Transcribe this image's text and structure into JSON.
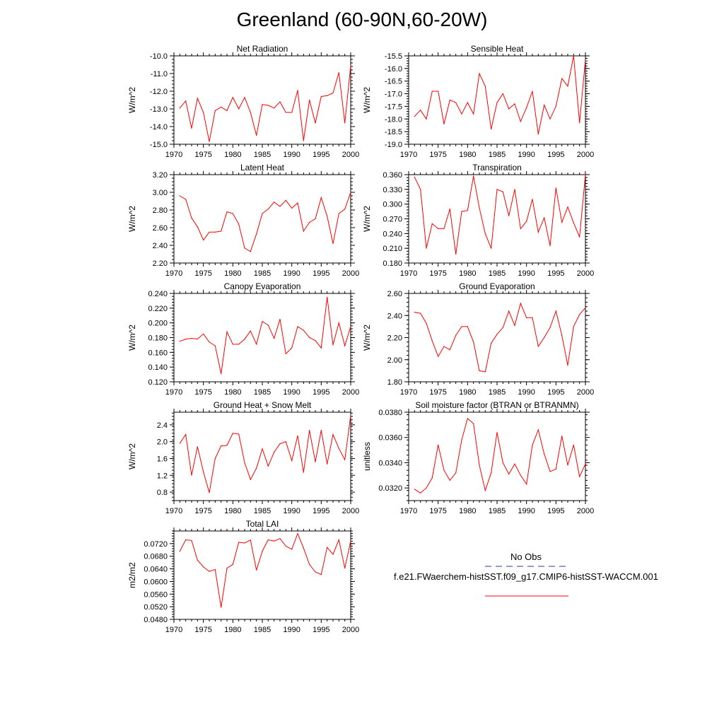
{
  "title": "Greenland (60-90N,60-20W)",
  "colors": {
    "series": "#ff0000",
    "obs": "#2b3b8f",
    "axis": "#000000"
  },
  "legend": {
    "obs_label": "No Obs",
    "model_label": "f.e21.FWaerchem-histSST.f09_g17.CMIP6-histSST-WACCM.001"
  },
  "chart_data": [
    {
      "type": "line",
      "title": "Net Radiation",
      "ylabel": "W/m^2",
      "xlabel": "",
      "xlim": [
        1970,
        2000
      ],
      "ylim": [
        -15.0,
        -10.0
      ],
      "xticks": [
        1970,
        1975,
        1980,
        1985,
        1990,
        1995,
        2000
      ],
      "yticks": [
        -15.0,
        -14.0,
        -13.0,
        -12.0,
        -11.0,
        -10.0
      ],
      "ytick_labels": [
        "-15.0",
        "-14.0",
        "-13.0",
        "-12.0",
        "-11.0",
        "-10.0"
      ],
      "x": [
        1971,
        1972,
        1973,
        1974,
        1975,
        1976,
        1977,
        1978,
        1979,
        1980,
        1981,
        1982,
        1983,
        1984,
        1985,
        1986,
        1987,
        1988,
        1989,
        1990,
        1991,
        1992,
        1993,
        1994,
        1995,
        1996,
        1997,
        1998,
        1999,
        2000
      ],
      "series": [
        {
          "name": "f.e21.FWaerchem-histSST.f09_g17.CMIP6-histSST-WACCM.001",
          "values": [
            -12.95,
            -12.55,
            -14.1,
            -12.4,
            -13.2,
            -14.85,
            -13.1,
            -12.9,
            -13.1,
            -12.35,
            -13.0,
            -12.35,
            -13.2,
            -14.5,
            -12.75,
            -12.8,
            -12.95,
            -12.6,
            -13.2,
            -13.2,
            -11.95,
            -14.8,
            -12.5,
            -13.8,
            -12.3,
            -12.25,
            -12.1,
            -10.95,
            -13.8,
            -10.55
          ]
        }
      ]
    },
    {
      "type": "line",
      "title": "Sensible Heat",
      "ylabel": "W/m^2",
      "xlabel": "",
      "xlim": [
        1970,
        2000
      ],
      "ylim": [
        -19.0,
        -15.5
      ],
      "xticks": [
        1970,
        1975,
        1980,
        1985,
        1990,
        1995,
        2000
      ],
      "yticks": [
        -19.0,
        -18.5,
        -18.0,
        -17.5,
        -17.0,
        -16.5,
        -16.0,
        -15.5
      ],
      "ytick_labels": [
        "-19.0",
        "-18.5",
        "-18.0",
        "-17.5",
        "-17.0",
        "-16.5",
        "-16.0",
        "-15.5"
      ],
      "x": [
        1971,
        1972,
        1973,
        1974,
        1975,
        1976,
        1977,
        1978,
        1979,
        1980,
        1981,
        1982,
        1983,
        1984,
        1985,
        1986,
        1987,
        1988,
        1989,
        1990,
        1991,
        1992,
        1993,
        1994,
        1995,
        1996,
        1997,
        1998,
        1999,
        2000
      ],
      "series": [
        {
          "name": "f.e21.FWaerchem-histSST.f09_g17.CMIP6-histSST-WACCM.001",
          "values": [
            -17.9,
            -17.65,
            -18.0,
            -16.9,
            -16.9,
            -18.2,
            -17.25,
            -17.35,
            -17.8,
            -17.35,
            -17.8,
            -16.2,
            -16.7,
            -18.4,
            -17.35,
            -17.0,
            -17.6,
            -17.4,
            -18.1,
            -17.55,
            -16.9,
            -18.6,
            -17.45,
            -18.0,
            -17.5,
            -16.4,
            -16.7,
            -15.5,
            -18.15,
            -15.65
          ]
        }
      ]
    },
    {
      "type": "line",
      "title": "Latent Heat",
      "ylabel": "W/m^2",
      "xlabel": "",
      "xlim": [
        1970,
        2000
      ],
      "ylim": [
        2.2,
        3.2
      ],
      "xticks": [
        1970,
        1975,
        1980,
        1985,
        1990,
        1995,
        2000
      ],
      "yticks": [
        2.2,
        2.4,
        2.6,
        2.8,
        3.0,
        3.2
      ],
      "ytick_labels": [
        "2.20",
        "2.40",
        "2.60",
        "2.80",
        "3.00",
        "3.20"
      ],
      "x": [
        1971,
        1972,
        1973,
        1974,
        1975,
        1976,
        1977,
        1978,
        1979,
        1980,
        1981,
        1982,
        1983,
        1984,
        1985,
        1986,
        1987,
        1988,
        1989,
        1990,
        1991,
        1992,
        1993,
        1994,
        1995,
        1996,
        1997,
        1998,
        1999,
        2000
      ],
      "series": [
        {
          "name": "f.e21.FWaerchem-histSST.f09_g17.CMIP6-histSST-WACCM.001",
          "values": [
            2.96,
            2.92,
            2.71,
            2.61,
            2.46,
            2.55,
            2.55,
            2.56,
            2.78,
            2.76,
            2.64,
            2.37,
            2.33,
            2.53,
            2.76,
            2.81,
            2.89,
            2.84,
            2.91,
            2.82,
            2.88,
            2.56,
            2.66,
            2.7,
            2.94,
            2.73,
            2.42,
            2.76,
            2.81,
            3.0
          ]
        }
      ]
    },
    {
      "type": "line",
      "title": "Transpiration",
      "ylabel": "W/m^2",
      "xlabel": "",
      "xlim": [
        1970,
        2000
      ],
      "ylim": [
        0.18,
        0.36
      ],
      "xticks": [
        1970,
        1975,
        1980,
        1985,
        1990,
        1995,
        2000
      ],
      "yticks": [
        0.18,
        0.21,
        0.24,
        0.27,
        0.3,
        0.33,
        0.36
      ],
      "ytick_labels": [
        "0.180",
        "0.210",
        "0.240",
        "0.270",
        "0.300",
        "0.330",
        "0.360"
      ],
      "x": [
        1971,
        1972,
        1973,
        1974,
        1975,
        1976,
        1977,
        1978,
        1979,
        1980,
        1981,
        1982,
        1983,
        1984,
        1985,
        1986,
        1987,
        1988,
        1989,
        1990,
        1991,
        1992,
        1993,
        1994,
        1995,
        1996,
        1997,
        1998,
        1999,
        2000
      ],
      "series": [
        {
          "name": "f.e21.FWaerchem-histSST.f09_g17.CMIP6-histSST-WACCM.001",
          "values": [
            0.355,
            0.33,
            0.21,
            0.26,
            0.25,
            0.25,
            0.29,
            0.198,
            0.285,
            0.287,
            0.357,
            0.292,
            0.24,
            0.21,
            0.33,
            0.325,
            0.276,
            0.33,
            0.25,
            0.265,
            0.31,
            0.243,
            0.272,
            0.215,
            0.333,
            0.263,
            0.294,
            0.262,
            0.233,
            0.36
          ]
        }
      ]
    },
    {
      "type": "line",
      "title": "Canopy Evaporation",
      "ylabel": "W/m^2",
      "xlabel": "",
      "xlim": [
        1970,
        2000
      ],
      "ylim": [
        0.12,
        0.24
      ],
      "xticks": [
        1970,
        1975,
        1980,
        1985,
        1990,
        1995,
        2000
      ],
      "yticks": [
        0.12,
        0.14,
        0.16,
        0.18,
        0.2,
        0.22,
        0.24
      ],
      "ytick_labels": [
        "0.120",
        "0.140",
        "0.160",
        "0.180",
        "0.200",
        "0.220",
        "0.240"
      ],
      "x": [
        1971,
        1972,
        1973,
        1974,
        1975,
        1976,
        1977,
        1978,
        1979,
        1980,
        1981,
        1982,
        1983,
        1984,
        1985,
        1986,
        1987,
        1988,
        1989,
        1990,
        1991,
        1992,
        1993,
        1994,
        1995,
        1996,
        1997,
        1998,
        1999,
        2000
      ],
      "series": [
        {
          "name": "f.e21.FWaerchem-histSST.f09_g17.CMIP6-histSST-WACCM.001",
          "values": [
            0.175,
            0.178,
            0.179,
            0.178,
            0.185,
            0.174,
            0.169,
            0.131,
            0.188,
            0.171,
            0.171,
            0.178,
            0.189,
            0.171,
            0.202,
            0.197,
            0.179,
            0.205,
            0.158,
            0.166,
            0.195,
            0.19,
            0.18,
            0.176,
            0.166,
            0.235,
            0.17,
            0.2,
            0.169,
            0.195
          ]
        }
      ]
    },
    {
      "type": "line",
      "title": "Ground Evaporation",
      "ylabel": "W/m^2",
      "xlabel": "",
      "xlim": [
        1970,
        2000
      ],
      "ylim": [
        1.8,
        2.6
      ],
      "xticks": [
        1970,
        1975,
        1980,
        1985,
        1990,
        1995,
        2000
      ],
      "yticks": [
        1.8,
        2.0,
        2.2,
        2.4,
        2.6
      ],
      "ytick_labels": [
        "1.80",
        "2.00",
        "2.20",
        "2.40",
        "2.60"
      ],
      "x": [
        1971,
        1972,
        1973,
        1974,
        1975,
        1976,
        1977,
        1978,
        1979,
        1980,
        1981,
        1982,
        1983,
        1984,
        1985,
        1986,
        1987,
        1988,
        1989,
        1990,
        1991,
        1992,
        1993,
        1994,
        1995,
        1996,
        1997,
        1998,
        1999,
        2000
      ],
      "series": [
        {
          "name": "f.e21.FWaerchem-histSST.f09_g17.CMIP6-histSST-WACCM.001",
          "values": [
            2.43,
            2.42,
            2.33,
            2.17,
            2.03,
            2.12,
            2.09,
            2.22,
            2.3,
            2.3,
            2.16,
            1.9,
            1.89,
            2.15,
            2.23,
            2.29,
            2.44,
            2.31,
            2.51,
            2.38,
            2.38,
            2.12,
            2.2,
            2.29,
            2.44,
            2.22,
            1.95,
            2.3,
            2.41,
            2.47
          ]
        }
      ]
    },
    {
      "type": "line",
      "title": "Ground Heat + Snow Melt",
      "ylabel": "W/m^2",
      "xlabel": "",
      "xlim": [
        1970,
        2000
      ],
      "ylim": [
        0.6,
        2.7
      ],
      "xticks": [
        1970,
        1975,
        1980,
        1985,
        1990,
        1995,
        2000
      ],
      "yticks": [
        0.8,
        1.2,
        1.6,
        2.0,
        2.4
      ],
      "ytick_labels": [
        "0.8",
        "1.2",
        "1.6",
        "2.0",
        "2.4"
      ],
      "x": [
        1971,
        1972,
        1973,
        1974,
        1975,
        1976,
        1977,
        1978,
        1979,
        1980,
        1981,
        1982,
        1983,
        1984,
        1985,
        1986,
        1987,
        1988,
        1989,
        1990,
        1991,
        1992,
        1993,
        1994,
        1995,
        1996,
        1997,
        1998,
        1999,
        2000
      ],
      "series": [
        {
          "name": "f.e21.FWaerchem-histSST.f09_g17.CMIP6-histSST-WACCM.001",
          "values": [
            1.96,
            2.17,
            1.2,
            1.88,
            1.28,
            0.79,
            1.6,
            1.9,
            1.91,
            2.2,
            2.18,
            1.5,
            1.1,
            1.37,
            1.83,
            1.42,
            1.75,
            1.95,
            2.0,
            1.55,
            2.14,
            1.27,
            2.27,
            1.52,
            2.27,
            1.47,
            2.17,
            1.84,
            1.57,
            2.62
          ]
        }
      ]
    },
    {
      "type": "line",
      "title": "Soil moisture factor (BTRAN or BTRANMN)",
      "ylabel": "unitless",
      "xlabel": "",
      "xlim": [
        1970,
        2000
      ],
      "ylim": [
        0.031,
        0.038
      ],
      "xticks": [
        1970,
        1975,
        1980,
        1985,
        1990,
        1995,
        2000
      ],
      "yticks": [
        0.032,
        0.034,
        0.036,
        0.038
      ],
      "ytick_labels": [
        "0.0320",
        "0.0340",
        "0.0360",
        "0.0380"
      ],
      "x": [
        1971,
        1972,
        1973,
        1974,
        1975,
        1976,
        1977,
        1978,
        1979,
        1980,
        1981,
        1982,
        1983,
        1984,
        1985,
        1986,
        1987,
        1988,
        1989,
        1990,
        1991,
        1992,
        1993,
        1994,
        1995,
        1996,
        1997,
        1998,
        1999,
        2000
      ],
      "series": [
        {
          "name": "f.e21.FWaerchem-histSST.f09_g17.CMIP6-histSST-WACCM.001",
          "values": [
            0.0319,
            0.0316,
            0.032,
            0.0328,
            0.0354,
            0.0334,
            0.0326,
            0.0332,
            0.0358,
            0.0375,
            0.0371,
            0.0338,
            0.0318,
            0.0332,
            0.0364,
            0.034,
            0.0331,
            0.0339,
            0.033,
            0.0323,
            0.0354,
            0.0366,
            0.0347,
            0.0333,
            0.0335,
            0.0361,
            0.0338,
            0.0354,
            0.0329,
            0.0339
          ]
        }
      ]
    },
    {
      "type": "line",
      "title": "Total LAI",
      "ylabel": "m2/m2",
      "xlabel": "",
      "xlim": [
        1970,
        2000
      ],
      "ylim": [
        0.048,
        0.076
      ],
      "xticks": [
        1970,
        1975,
        1980,
        1985,
        1990,
        1995,
        2000
      ],
      "yticks": [
        0.048,
        0.052,
        0.056,
        0.06,
        0.064,
        0.068,
        0.072
      ],
      "ytick_labels": [
        "0.0480",
        "0.0520",
        "0.0560",
        "0.0600",
        "0.0640",
        "0.0680",
        "0.0720"
      ],
      "x": [
        1971,
        1972,
        1973,
        1974,
        1975,
        1976,
        1977,
        1978,
        1979,
        1980,
        1981,
        1982,
        1983,
        1984,
        1985,
        1986,
        1987,
        1988,
        1989,
        1990,
        1991,
        1992,
        1993,
        1994,
        1995,
        1996,
        1997,
        1998,
        1999,
        2000
      ],
      "series": [
        {
          "name": "f.e21.FWaerchem-histSST.f09_g17.CMIP6-histSST-WACCM.001",
          "values": [
            0.0696,
            0.0732,
            0.073,
            0.0668,
            0.0646,
            0.0632,
            0.0638,
            0.0518,
            0.0642,
            0.0654,
            0.0724,
            0.0722,
            0.0731,
            0.0636,
            0.0696,
            0.0732,
            0.0728,
            0.0736,
            0.0712,
            0.0702,
            0.0752,
            0.0706,
            0.0654,
            0.063,
            0.0622,
            0.0708,
            0.0686,
            0.0732,
            0.0642,
            0.0728
          ]
        }
      ]
    }
  ]
}
